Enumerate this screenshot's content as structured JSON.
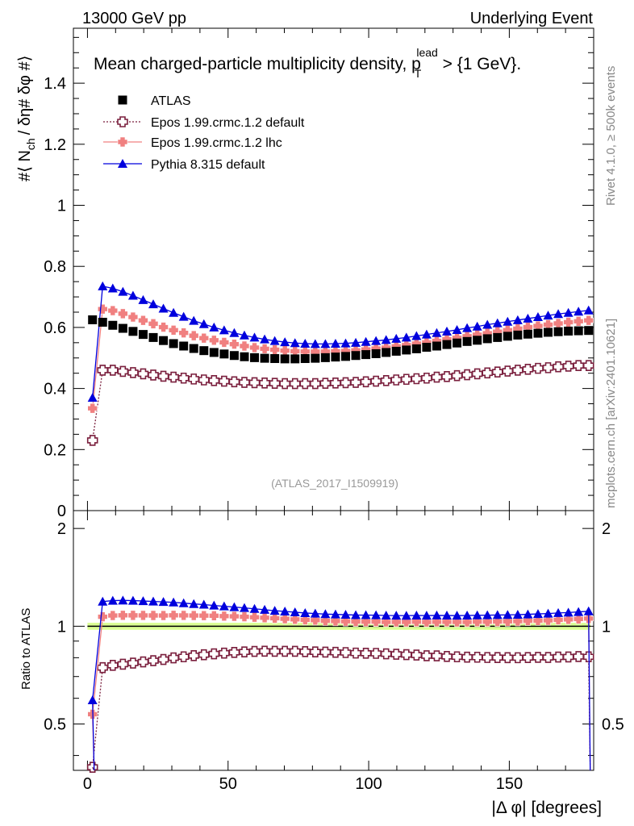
{
  "header": {
    "left": "13000 GeV pp",
    "right": "Underlying Event"
  },
  "side": {
    "rivet": "Rivet 4.1.0, ≥ 500k events",
    "mcplots": "mcplots.cern.ch [arXiv:2401.10621]"
  },
  "chart_data": {
    "type": "line",
    "title_main": "Mean charged-particle multiplicity density, p",
    "title_sub": "T",
    "title_sup": "lead",
    "title_tail": " > {1 GeV}.",
    "ylabel": "#⟨ N",
    "ylabel_sub": "ch",
    "ylabel_tail": "/ δη# δφ #⟩",
    "ratio_ylabel": "Ratio to ATLAS",
    "xlabel": "|Δ φ| [degrees]",
    "watermark": "(ATLAS_2017_I1509919)",
    "xlim": [
      -5,
      180
    ],
    "ylim": [
      0,
      1.58
    ],
    "ratio_ylim": [
      0.36,
      2.27
    ],
    "x_ticks": [
      "0",
      "50",
      "100",
      "150"
    ],
    "y_ticks": [
      "0",
      "0.2",
      "0.4",
      "0.6",
      "0.8",
      "1",
      "1.2",
      "1.4"
    ],
    "ratio_y_ticks": [
      "0.5",
      "1",
      "2"
    ],
    "legend": [
      {
        "name": "ATLAS",
        "color": "#000000",
        "marker": "square"
      },
      {
        "name": "Epos 1.99.crmc.1.2 default",
        "color": "#7a1f3d",
        "marker": "cross-open"
      },
      {
        "name": "Epos 1.99.crmc.1.2 lhc",
        "color": "#f08080",
        "marker": "cross"
      },
      {
        "name": "Pythia 8.315 default",
        "color": "#0000dd",
        "marker": "triangle"
      }
    ],
    "x": [
      1.8,
      5.4,
      9.0,
      12.6,
      16.2,
      19.8,
      23.4,
      27.0,
      30.6,
      34.2,
      37.8,
      41.4,
      45.0,
      48.6,
      52.2,
      55.8,
      59.4,
      63.0,
      66.6,
      70.2,
      73.8,
      77.4,
      81.0,
      84.6,
      88.2,
      91.8,
      95.4,
      99.0,
      102.6,
      106.2,
      109.8,
      113.4,
      117.0,
      120.6,
      124.2,
      127.8,
      131.4,
      135.0,
      138.6,
      142.2,
      145.8,
      149.4,
      153.0,
      156.6,
      160.2,
      163.8,
      167.4,
      171.0,
      174.6,
      178.2
    ],
    "series": [
      {
        "name": "ATLAS",
        "values": [
          0.625,
          0.617,
          0.607,
          0.597,
          0.587,
          0.577,
          0.567,
          0.557,
          0.547,
          0.539,
          0.531,
          0.524,
          0.518,
          0.513,
          0.508,
          0.504,
          0.501,
          0.499,
          0.498,
          0.497,
          0.497,
          0.498,
          0.499,
          0.501,
          0.503,
          0.505,
          0.508,
          0.511,
          0.514,
          0.518,
          0.522,
          0.526,
          0.53,
          0.535,
          0.539,
          0.544,
          0.549,
          0.554,
          0.558,
          0.563,
          0.567,
          0.571,
          0.575,
          0.578,
          0.581,
          0.584,
          0.586,
          0.588,
          0.589,
          0.59
        ]
      },
      {
        "name": "Epos 1.99.crmc.1.2 default",
        "values": [
          0.23,
          0.46,
          0.46,
          0.456,
          0.452,
          0.448,
          0.444,
          0.44,
          0.437,
          0.434,
          0.431,
          0.428,
          0.426,
          0.424,
          0.422,
          0.42,
          0.419,
          0.418,
          0.417,
          0.416,
          0.416,
          0.416,
          0.416,
          0.417,
          0.418,
          0.419,
          0.42,
          0.422,
          0.424,
          0.426,
          0.428,
          0.43,
          0.432,
          0.434,
          0.437,
          0.439,
          0.442,
          0.445,
          0.448,
          0.451,
          0.454,
          0.457,
          0.46,
          0.463,
          0.466,
          0.468,
          0.471,
          0.473,
          0.475,
          0.475
        ]
      },
      {
        "name": "Epos 1.99.crmc.1.2 lhc",
        "values": [
          0.335,
          0.66,
          0.655,
          0.645,
          0.634,
          0.623,
          0.612,
          0.601,
          0.591,
          0.582,
          0.573,
          0.565,
          0.558,
          0.551,
          0.545,
          0.539,
          0.534,
          0.53,
          0.527,
          0.524,
          0.522,
          0.521,
          0.521,
          0.521,
          0.522,
          0.523,
          0.525,
          0.528,
          0.531,
          0.534,
          0.538,
          0.542,
          0.547,
          0.551,
          0.556,
          0.561,
          0.566,
          0.571,
          0.576,
          0.581,
          0.586,
          0.591,
          0.596,
          0.601,
          0.605,
          0.609,
          0.613,
          0.617,
          0.62,
          0.623
        ]
      },
      {
        "name": "Pythia 8.315 default",
        "values": [
          0.37,
          0.735,
          0.728,
          0.717,
          0.704,
          0.69,
          0.676,
          0.662,
          0.648,
          0.635,
          0.622,
          0.611,
          0.6,
          0.591,
          0.582,
          0.574,
          0.567,
          0.561,
          0.556,
          0.552,
          0.549,
          0.547,
          0.546,
          0.546,
          0.547,
          0.548,
          0.55,
          0.553,
          0.556,
          0.559,
          0.563,
          0.567,
          0.572,
          0.577,
          0.582,
          0.587,
          0.592,
          0.598,
          0.603,
          0.609,
          0.614,
          0.619,
          0.624,
          0.629,
          0.634,
          0.639,
          0.644,
          0.648,
          0.652,
          0.656
        ]
      }
    ]
  }
}
